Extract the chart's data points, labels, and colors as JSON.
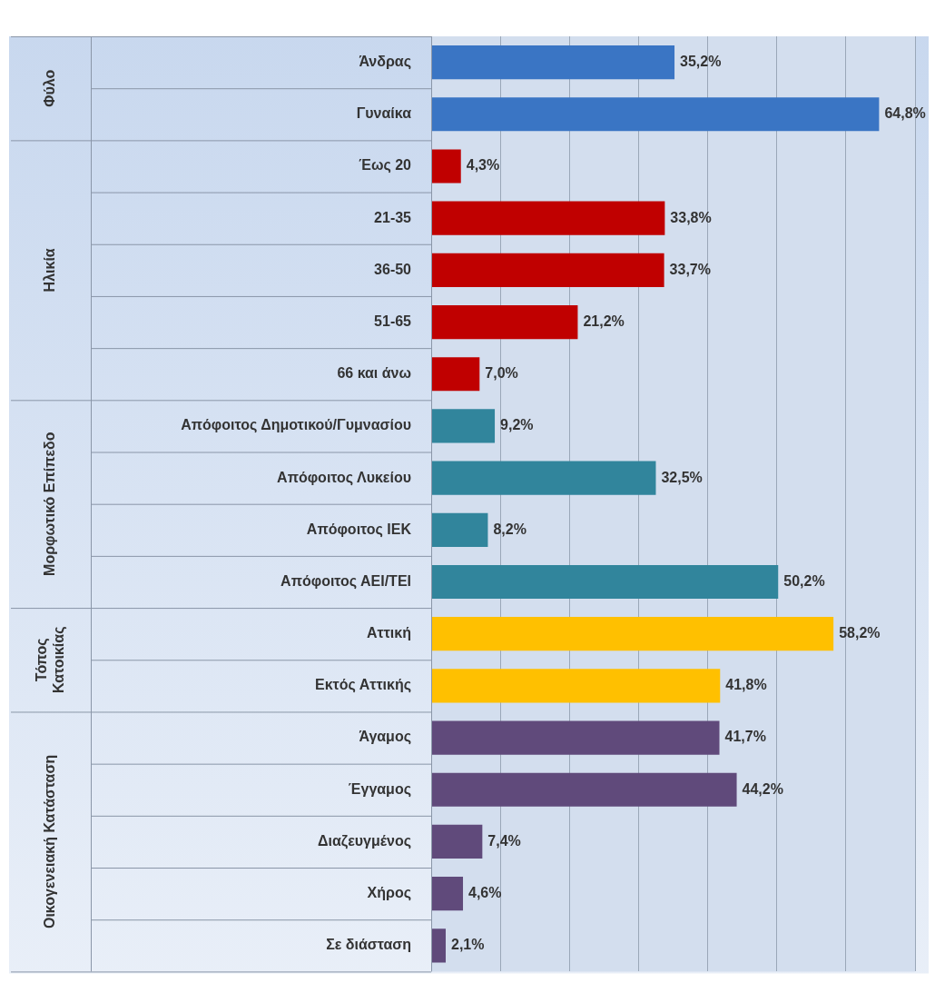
{
  "chart_data": {
    "type": "bar",
    "orientation": "horizontal",
    "categories": [
      "Άνδρας",
      "Γυναίκα",
      "Έως 20",
      "21-35",
      "36-50",
      "51-65",
      "66 και άνω",
      "Απόφοιτος Δημοτικού/Γυμνασίου",
      "Απόφοιτος Λυκείου",
      "Απόφοιτος ΙΕΚ",
      "Απόφοιτος ΑΕΙ/ΤΕΙ",
      "Αττική",
      "Εκτός Αττικής",
      "Άγαμος",
      "Έγγαμος",
      "Διαζευγμένος",
      "Χήρος",
      "Σε διάσταση"
    ],
    "values": [
      35.2,
      64.8,
      4.3,
      33.8,
      33.7,
      21.2,
      7.0,
      9.2,
      32.5,
      8.2,
      50.2,
      58.2,
      41.8,
      41.7,
      44.2,
      7.4,
      4.6,
      2.1
    ],
    "value_labels": [
      "35,2%",
      "64,8%",
      "4,3%",
      "33,8%",
      "33,7%",
      "21,2%",
      "7,0%",
      "9,2%",
      "32,5%",
      "8,2%",
      "50,2%",
      "58,2%",
      "41,8%",
      "41,7%",
      "44,2%",
      "7,4%",
      "4,6%",
      "2,1%"
    ],
    "colors": [
      "#3a75c4",
      "#3a75c4",
      "#c00000",
      "#c00000",
      "#c00000",
      "#c00000",
      "#c00000",
      "#31859c",
      "#31859c",
      "#31859c",
      "#31859c",
      "#ffc000",
      "#ffc000",
      "#604a7b",
      "#604a7b",
      "#604a7b",
      "#604a7b",
      "#604a7b"
    ],
    "annotations": [
      "Φύλο",
      "Ηλικία",
      "Μορφωτικό Επίπεδο",
      "Τόπος Κατοικίας",
      "Οικογενειακή Κατάσταση"
    ],
    "xlim": [
      0,
      70
    ],
    "xticks": [
      {
        "value": 0,
        "label": null
      },
      {
        "value": 10,
        "label": null
      },
      {
        "value": 20,
        "label": null
      },
      {
        "value": 30,
        "label": null
      },
      {
        "value": 40,
        "label": null
      },
      {
        "value": 50,
        "label": null
      },
      {
        "value": 60,
        "label": null
      },
      {
        "value": 70,
        "label": null
      }
    ],
    "grid": "x",
    "legend": false,
    "tick_labels": "y"
  }
}
